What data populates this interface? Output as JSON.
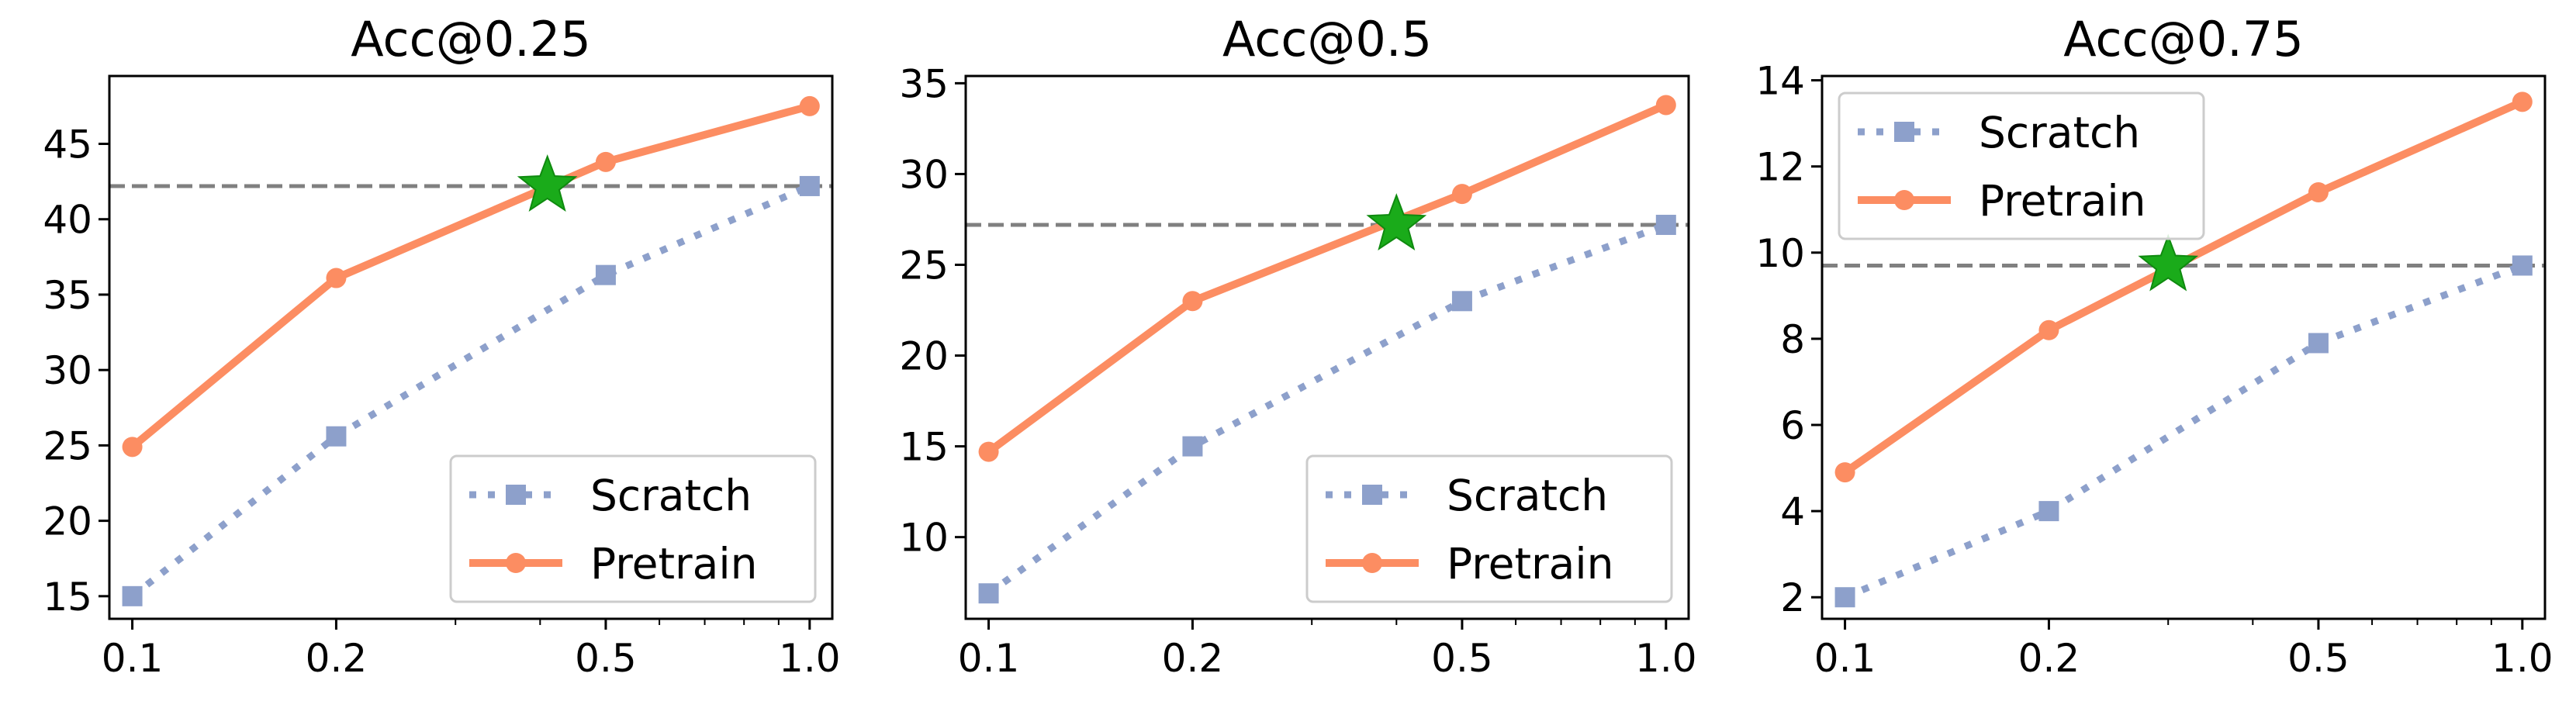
{
  "chart_data": [
    {
      "type": "line",
      "title": "Acc@0.25",
      "xscale": "log",
      "xlim": [
        0.0925,
        1.08
      ],
      "ylim": [
        13.5,
        49.5
      ],
      "xticks": [
        0.1,
        0.2,
        0.5,
        1.0
      ],
      "xtick_labels": [
        "0.1",
        "0.2",
        "0.5",
        "1.0"
      ],
      "yticks": [
        15,
        20,
        25,
        30,
        35,
        40,
        45
      ],
      "ytick_labels": [
        "15",
        "20",
        "25",
        "30",
        "35",
        "40",
        "45"
      ],
      "x": [
        0.1,
        0.2,
        0.5,
        1.0
      ],
      "series": [
        {
          "name": "Scratch",
          "values": [
            15.0,
            25.6,
            36.3,
            42.2
          ],
          "color": "#8da0cb",
          "line": "dotted",
          "marker": "square"
        },
        {
          "name": "Pretrain",
          "values": [
            24.9,
            36.1,
            43.8,
            47.5
          ],
          "color": "#fc8d62",
          "line": "solid",
          "marker": "circle"
        }
      ],
      "reference_line": {
        "y": 42.2,
        "color": "#808080",
        "style": "dashed"
      },
      "star": {
        "x": 0.41,
        "y": 42.2,
        "color": "#1aab1a"
      },
      "legend": "lower-right",
      "grid": false
    },
    {
      "type": "line",
      "title": "Acc@0.5",
      "xscale": "log",
      "xlim": [
        0.0925,
        1.08
      ],
      "ylim": [
        5.5,
        35.4
      ],
      "xticks": [
        0.1,
        0.2,
        0.5,
        1.0
      ],
      "xtick_labels": [
        "0.1",
        "0.2",
        "0.5",
        "1.0"
      ],
      "yticks": [
        10,
        15,
        20,
        25,
        30,
        35
      ],
      "ytick_labels": [
        "10",
        "15",
        "20",
        "25",
        "30",
        "35"
      ],
      "x": [
        0.1,
        0.2,
        0.5,
        1.0
      ],
      "series": [
        {
          "name": "Scratch",
          "values": [
            6.9,
            15.0,
            23.0,
            27.2
          ],
          "color": "#8da0cb",
          "line": "dotted",
          "marker": "square"
        },
        {
          "name": "Pretrain",
          "values": [
            14.7,
            23.0,
            28.9,
            33.8
          ],
          "color": "#fc8d62",
          "line": "solid",
          "marker": "circle"
        }
      ],
      "reference_line": {
        "y": 27.2,
        "color": "#808080",
        "style": "dashed"
      },
      "star": {
        "x": 0.4,
        "y": 27.2,
        "color": "#1aab1a"
      },
      "legend": "lower-right",
      "grid": false
    },
    {
      "type": "line",
      "title": "Acc@0.75",
      "xscale": "log",
      "xlim": [
        0.0925,
        1.08
      ],
      "ylim": [
        1.5,
        14.1
      ],
      "xticks": [
        0.1,
        0.2,
        0.5,
        1.0
      ],
      "xtick_labels": [
        "0.1",
        "0.2",
        "0.5",
        "1.0"
      ],
      "yticks": [
        2,
        4,
        6,
        8,
        10,
        12,
        14
      ],
      "ytick_labels": [
        "2",
        "4",
        "6",
        "8",
        "10",
        "12",
        "14"
      ],
      "x": [
        0.1,
        0.2,
        0.5,
        1.0
      ],
      "series": [
        {
          "name": "Scratch",
          "values": [
            2.0,
            4.0,
            7.9,
            9.7
          ],
          "color": "#8da0cb",
          "line": "dotted",
          "marker": "square"
        },
        {
          "name": "Pretrain",
          "values": [
            4.9,
            8.2,
            11.4,
            13.5
          ],
          "color": "#fc8d62",
          "line": "solid",
          "marker": "circle"
        }
      ],
      "reference_line": {
        "y": 9.7,
        "color": "#808080",
        "style": "dashed"
      },
      "star": {
        "x": 0.3,
        "y": 9.7,
        "color": "#1aab1a"
      },
      "legend": "upper-left",
      "grid": false
    }
  ]
}
